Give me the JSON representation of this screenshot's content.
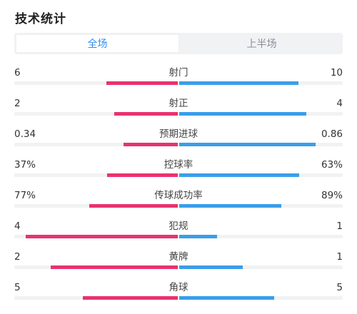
{
  "header": {
    "title": "技术统计"
  },
  "tabs": [
    {
      "label": "全场",
      "active": true
    },
    {
      "label": "上半场",
      "active": false
    }
  ],
  "colors": {
    "home": "#e8336e",
    "away": "#3a9ee9",
    "accent": "#2f8ff1"
  },
  "stats": [
    {
      "label": "射门",
      "home": "6",
      "away": "10",
      "home_share": 0.375,
      "away_share": 0.625
    },
    {
      "label": "射正",
      "home": "2",
      "away": "4",
      "home_share": 0.333,
      "away_share": 0.667
    },
    {
      "label": "预期进球",
      "home": "0.34",
      "away": "0.86",
      "home_share": 0.283,
      "away_share": 0.717
    },
    {
      "label": "控球率",
      "home": "37%",
      "away": "63%",
      "home_share": 0.37,
      "away_share": 0.63
    },
    {
      "label": "传球成功率",
      "home": "77%",
      "away": "89%",
      "home_share": 0.464,
      "away_share": 0.536
    },
    {
      "label": "犯规",
      "home": "4",
      "away": "1",
      "home_share": 0.8,
      "away_share": 0.2
    },
    {
      "label": "黄牌",
      "home": "2",
      "away": "1",
      "home_share": 0.667,
      "away_share": 0.333
    },
    {
      "label": "角球",
      "home": "5",
      "away": "5",
      "home_share": 0.5,
      "away_share": 0.5
    }
  ]
}
